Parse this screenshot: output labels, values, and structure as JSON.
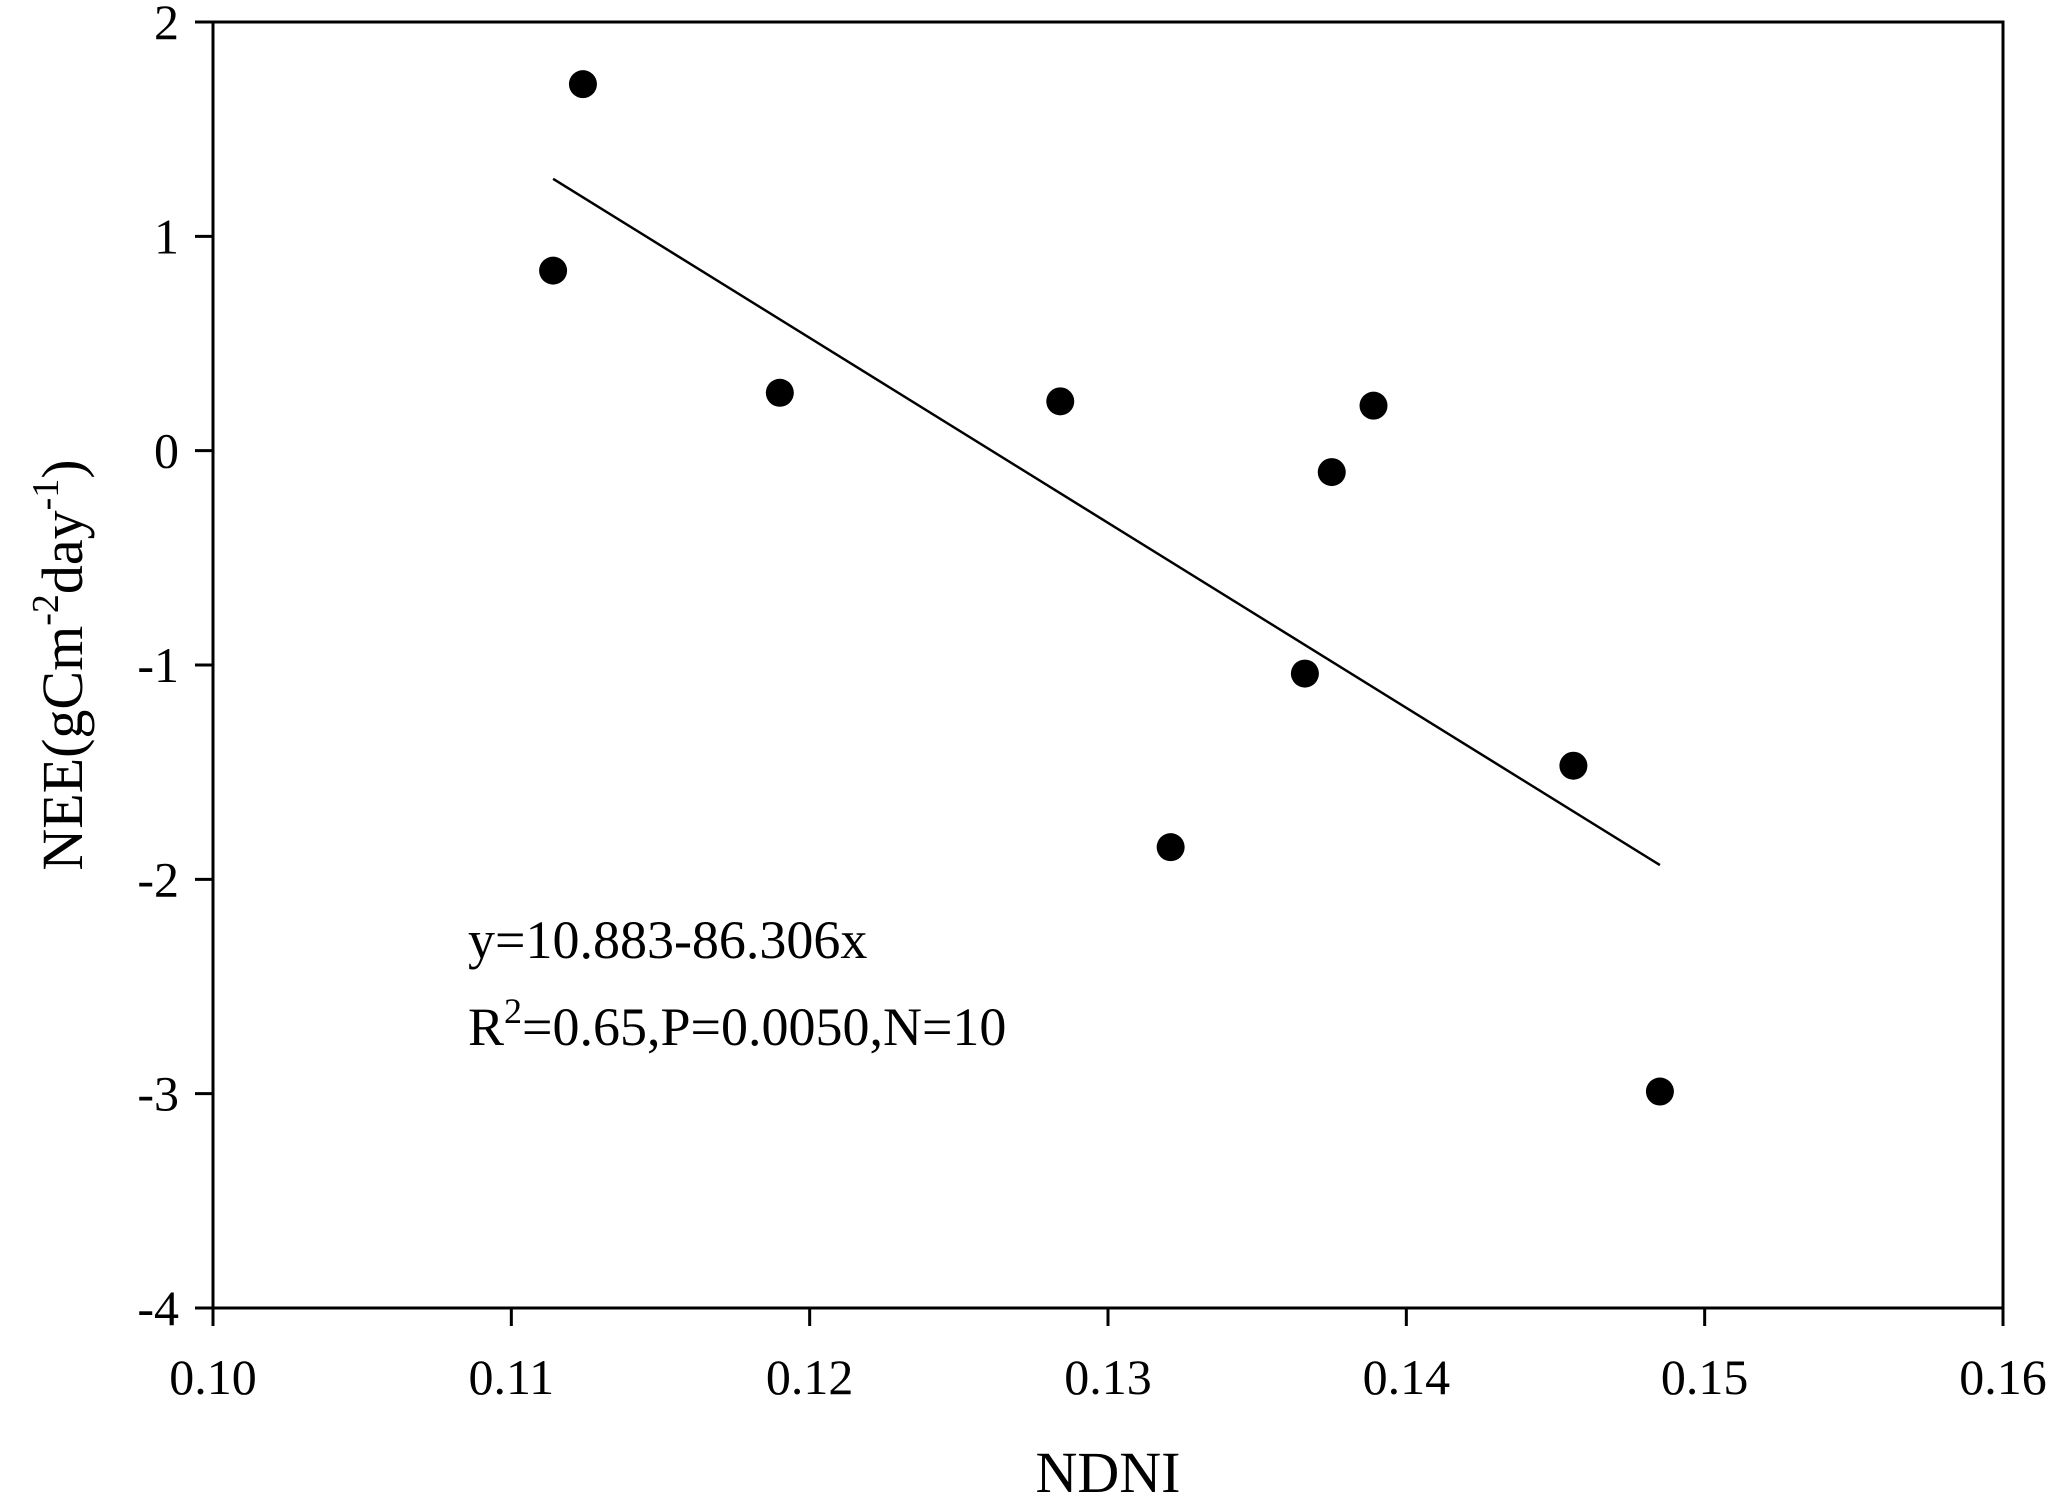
{
  "chart_data": {
    "type": "scatter",
    "xlabel": "NDNI",
    "ylabel": {
      "parts": [
        {
          "text": "NEE(gCm",
          "sup": false
        },
        {
          "text": "-2",
          "sup": true
        },
        {
          "text": "day",
          "sup": false
        },
        {
          "text": "-1",
          "sup": true
        },
        {
          "text": ")",
          "sup": false
        }
      ]
    },
    "xlim": [
      0.1,
      0.16
    ],
    "ylim": [
      -4,
      2
    ],
    "x_ticks": [
      "0.10",
      "0.11",
      "0.12",
      "0.13",
      "0.14",
      "0.15",
      "0.16"
    ],
    "y_ticks": [
      "-4",
      "-3",
      "-2",
      "-1",
      "0",
      "1",
      "2"
    ],
    "grid": false,
    "points": [
      {
        "x": 0.1114,
        "y": 0.84
      },
      {
        "x": 0.1124,
        "y": 1.71
      },
      {
        "x": 0.119,
        "y": 0.27
      },
      {
        "x": 0.1284,
        "y": 0.23
      },
      {
        "x": 0.1321,
        "y": -1.85
      },
      {
        "x": 0.1366,
        "y": -1.04
      },
      {
        "x": 0.1375,
        "y": -0.1
      },
      {
        "x": 0.1389,
        "y": 0.21
      },
      {
        "x": 0.1456,
        "y": -1.47
      },
      {
        "x": 0.1485,
        "y": -2.99
      }
    ],
    "fit_line": {
      "intercept": 10.883,
      "slope": -86.306,
      "x_range": [
        0.1114,
        0.1485
      ]
    },
    "annotations": {
      "equation": "y=10.883-86.306x",
      "r_symbol": "R",
      "r_sup": "2",
      "stats": "=0.65,P=0.0050,N=10"
    }
  }
}
